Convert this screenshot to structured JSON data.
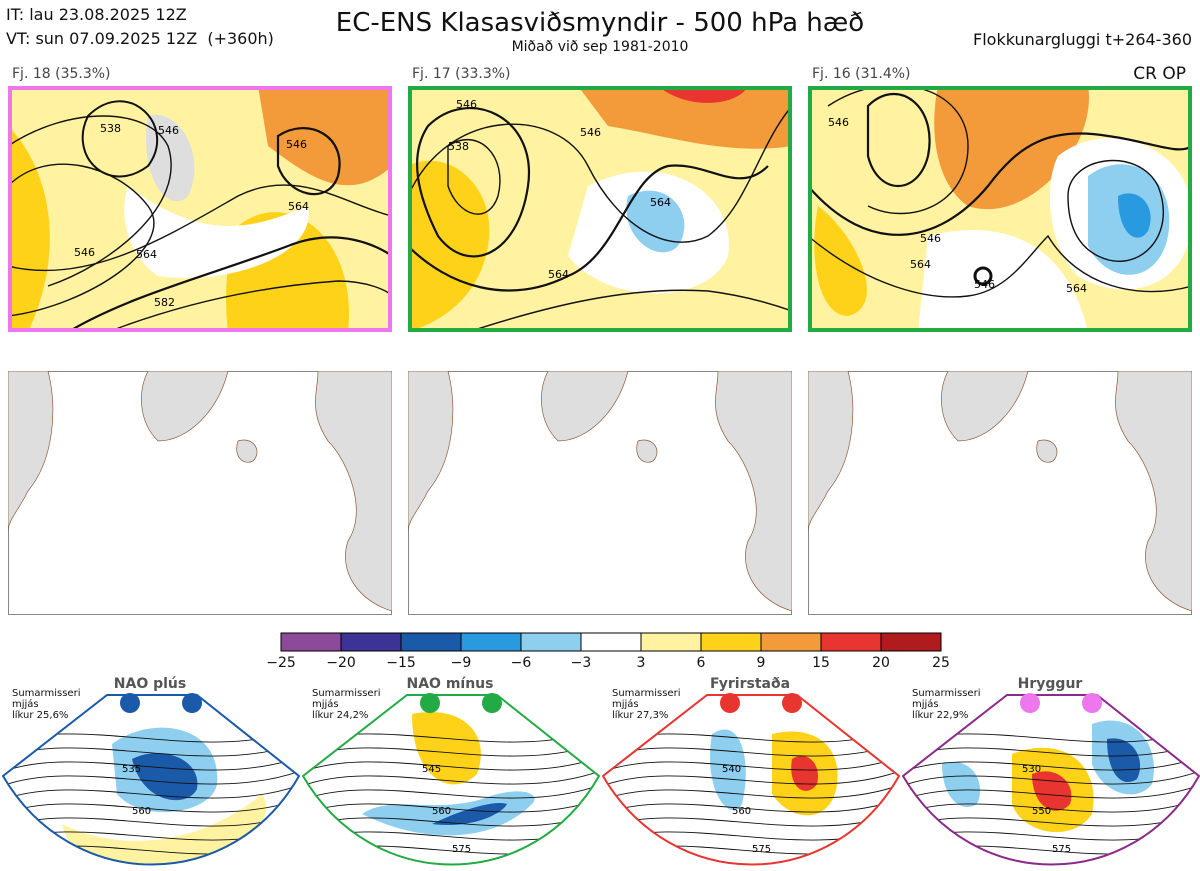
{
  "header": {
    "it_line": "IT: lau 23.08.2025 12Z",
    "vt_line": "VT: sun 07.09.2025 12Z  (+360h)",
    "title": "EC-ENS Klasasviðsmyndir - 500 hPa hæð",
    "subtitle": "Miðað við sep 1981-2010",
    "window": "Flokkunargluggi t+264-360"
  },
  "clusters": [
    {
      "label": "Fj. 18 (35.3%)",
      "border_color": "#ee77ee",
      "contours": [
        "538",
        "546",
        "546",
        "564",
        "546",
        "564",
        "582"
      ]
    },
    {
      "label": "Fj. 17 (33.3%)",
      "border_color": "#22aa44",
      "contours": [
        "546",
        "538",
        "546",
        "564",
        "564"
      ]
    },
    {
      "label": "Fj. 16 (31.4%)",
      "border_color": "#22aa44",
      "contours": [
        "546",
        "546",
        "564",
        "546",
        "564"
      ]
    }
  ],
  "cr_op": "CR OP",
  "colorbar": {
    "ticks": [
      "−25",
      "−20",
      "−15",
      "−9",
      "−6",
      "−3",
      "3",
      "6",
      "9",
      "15",
      "20",
      "25"
    ],
    "colors": [
      "#8e4a9a",
      "#3d3296",
      "#1a5aa8",
      "#2a9ae0",
      "#8ecff0",
      "#ffffff",
      "#fff2a0",
      "#ffd21a",
      "#f39a3a",
      "#e8352f",
      "#b01c1e"
    ]
  },
  "regimes": [
    {
      "name": "NAO plús",
      "note": "Sumarmisseri\nmjjás\nlíkur 25,6%",
      "dot_color": "#1a5aa8",
      "border": "#1a5aa8",
      "contours": [
        "535",
        "560"
      ]
    },
    {
      "name": "NAO mínus",
      "note": "Sumarmisseri\nmjjás\nlíkur 24,2%",
      "dot_color": "#22aa44",
      "border": "#22aa44",
      "contours": [
        "545",
        "560",
        "575"
      ]
    },
    {
      "name": "Fyrirstaða",
      "note": "Sumarmisseri\nmjjás\nlíkur 27,3%",
      "dot_color": "#e8352f",
      "border": "#e8352f",
      "contours": [
        "540",
        "560",
        "575"
      ]
    },
    {
      "name": "Hryggur",
      "note": "Sumarmisseri\nmjjás\nlíkur 22,9%",
      "dot_color": "#ee77ee",
      "border": "#8a2a8a",
      "contours": [
        "530",
        "550",
        "575"
      ]
    }
  ]
}
